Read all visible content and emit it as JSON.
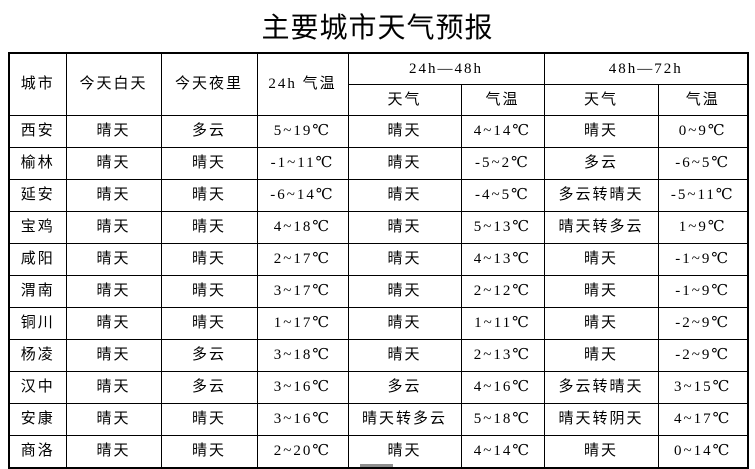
{
  "title": "主要城市天气预报",
  "table": {
    "header": {
      "city": "城市",
      "today_day": "今天白天",
      "today_night": "今天夜里",
      "temp_24h": "24h 气温",
      "group_24_48": "24h—48h",
      "group_48_72": "48h—72h",
      "weather": "天气",
      "temp": "气温"
    },
    "rows": [
      {
        "city": "西安",
        "day": "晴天",
        "night": "多云",
        "t24": "5~19℃",
        "w48": "晴天",
        "t48": "4~14℃",
        "w72": "晴天",
        "t72": "0~9℃"
      },
      {
        "city": "榆林",
        "day": "晴天",
        "night": "晴天",
        "t24": "-1~11℃",
        "w48": "晴天",
        "t48": "-5~2℃",
        "w72": "多云",
        "t72": "-6~5℃"
      },
      {
        "city": "延安",
        "day": "晴天",
        "night": "晴天",
        "t24": "-6~14℃",
        "w48": "晴天",
        "t48": "-4~5℃",
        "w72": "多云转晴天",
        "t72": "-5~11℃"
      },
      {
        "city": "宝鸡",
        "day": "晴天",
        "night": "晴天",
        "t24": "4~18℃",
        "w48": "晴天",
        "t48": "5~13℃",
        "w72": "晴天转多云",
        "t72": "1~9℃"
      },
      {
        "city": "咸阳",
        "day": "晴天",
        "night": "晴天",
        "t24": "2~17℃",
        "w48": "晴天",
        "t48": "4~13℃",
        "w72": "晴天",
        "t72": "-1~9℃"
      },
      {
        "city": "渭南",
        "day": "晴天",
        "night": "晴天",
        "t24": "3~17℃",
        "w48": "晴天",
        "t48": "2~12℃",
        "w72": "晴天",
        "t72": "-1~9℃"
      },
      {
        "city": "铜川",
        "day": "晴天",
        "night": "晴天",
        "t24": "1~17℃",
        "w48": "晴天",
        "t48": "1~11℃",
        "w72": "晴天",
        "t72": "-2~9℃"
      },
      {
        "city": "杨凌",
        "day": "晴天",
        "night": "多云",
        "t24": "3~18℃",
        "w48": "晴天",
        "t48": "2~13℃",
        "w72": "晴天",
        "t72": "-2~9℃"
      },
      {
        "city": "汉中",
        "day": "晴天",
        "night": "多云",
        "t24": "3~16℃",
        "w48": "多云",
        "t48": "4~16℃",
        "w72": "多云转晴天",
        "t72": "3~15℃"
      },
      {
        "city": "安康",
        "day": "晴天",
        "night": "晴天",
        "t24": "3~16℃",
        "w48": "晴天转多云",
        "t48": "5~18℃",
        "w72": "晴天转阴天",
        "t72": "4~17℃"
      },
      {
        "city": "商洛",
        "day": "晴天",
        "night": "晴天",
        "t24": "2~20℃",
        "w48": "晴天",
        "t48": "4~14℃",
        "w72": "晴天",
        "t72": "0~14℃"
      }
    ]
  }
}
